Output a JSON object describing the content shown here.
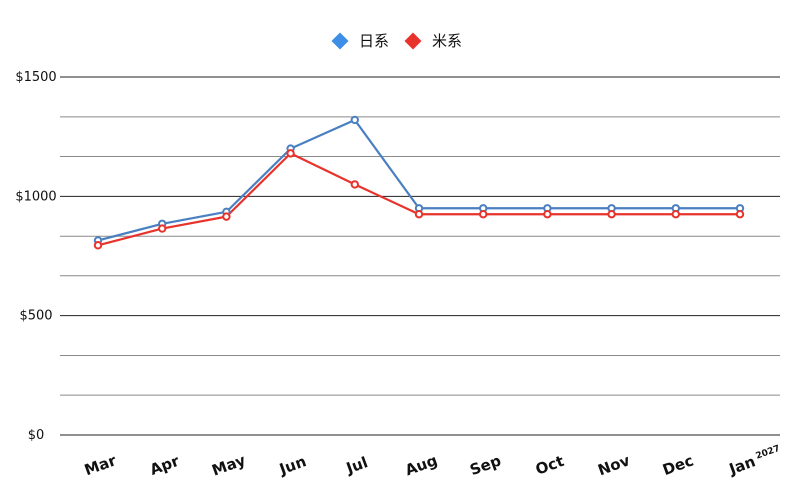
{
  "chart_data": {
    "type": "line",
    "title": "",
    "xlabel": "",
    "ylabel": "",
    "categories": [
      "Mar",
      "Apr",
      "May",
      "Jun",
      "Jul",
      "Aug",
      "Sep",
      "Oct",
      "Nov",
      "Dec",
      "Jan"
    ],
    "category_superscripts": [
      "",
      "",
      "",
      "",
      "",
      "",
      "",
      "",
      "",
      "",
      "2027"
    ],
    "ylim": [
      0,
      1500
    ],
    "yticks": [
      {
        "value": 0,
        "label": "$0"
      },
      {
        "value": 500,
        "label": "$500"
      },
      {
        "value": 1000,
        "label": "$1000"
      },
      {
        "value": 1500,
        "label": "$1500"
      }
    ],
    "minor_grid_values": [
      167,
      333,
      667,
      833,
      1167,
      1333
    ],
    "grid": true,
    "legend_position": "top-center",
    "series": [
      {
        "name": "日系",
        "color": "#4a7fc1",
        "legend_color": "#3d8ee6",
        "values": [
          815,
          885,
          935,
          1200,
          1320,
          950,
          950,
          950,
          950,
          950,
          950
        ]
      },
      {
        "name": "米系",
        "color": "#e8332c",
        "legend_color": "#e8332c",
        "values": [
          795,
          865,
          915,
          1180,
          1050,
          925,
          925,
          925,
          925,
          925,
          925
        ]
      }
    ]
  }
}
